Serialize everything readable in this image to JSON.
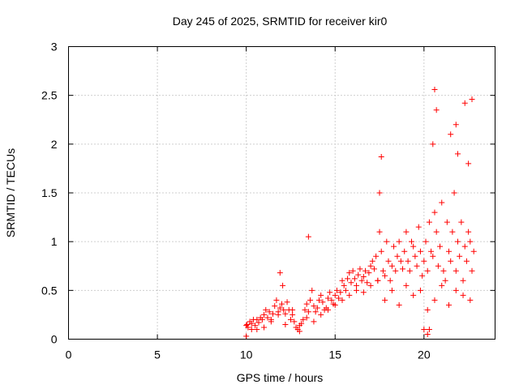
{
  "chart_data": {
    "type": "scatter",
    "title": "Day 245 of 2025, SRMTID for receiver kir0",
    "xlabel": "GPS time / hours",
    "ylabel": "SRMTID / TECUs",
    "xlim": [
      0,
      24
    ],
    "ylim": [
      0,
      3
    ],
    "xticks": [
      0,
      5,
      10,
      15,
      20
    ],
    "xtick_labels": [
      "0",
      "5",
      "10",
      "15",
      "20"
    ],
    "yticks": [
      0,
      0.5,
      1,
      1.5,
      2,
      2.5,
      3
    ],
    "ytick_labels": [
      "0",
      "0.5",
      "1",
      "1.5",
      "2",
      "2.5",
      "3"
    ],
    "grid": true,
    "marker": "+",
    "color": "#ff0000",
    "series": [
      {
        "name": "SRMTID",
        "x": [
          10.0,
          10.05,
          10.1,
          10.2,
          10.3,
          10.4,
          10.5,
          10.6,
          10.7,
          10.8,
          10.9,
          11.0,
          11.1,
          11.2,
          11.3,
          11.4,
          11.5,
          11.6,
          11.7,
          11.8,
          11.9,
          12.0,
          12.05,
          12.1,
          12.2,
          12.3,
          12.4,
          12.5,
          12.6,
          12.7,
          12.8,
          12.9,
          13.0,
          13.1,
          13.2,
          13.3,
          13.4,
          13.5,
          13.6,
          13.7,
          13.8,
          13.9,
          14.0,
          14.1,
          14.2,
          14.3,
          14.4,
          14.5,
          14.6,
          14.7,
          14.8,
          14.9,
          15.0,
          15.1,
          15.2,
          15.3,
          15.4,
          15.5,
          15.6,
          15.7,
          15.8,
          15.9,
          16.0,
          16.1,
          16.2,
          16.3,
          16.4,
          16.5,
          16.6,
          16.7,
          16.8,
          16.9,
          17.0,
          17.1,
          17.2,
          17.3,
          17.4,
          17.5,
          17.6,
          17.7,
          17.8,
          17.9,
          18.0,
          18.1,
          18.2,
          18.3,
          18.4,
          18.5,
          18.6,
          18.7,
          18.8,
          18.9,
          19.0,
          19.1,
          19.2,
          19.3,
          19.4,
          19.5,
          19.6,
          19.7,
          19.8,
          19.9,
          20.0,
          20.1,
          20.2,
          20.3,
          20.4,
          20.5,
          20.6,
          20.7,
          20.8,
          20.9,
          21.0,
          21.1,
          21.2,
          21.3,
          21.4,
          21.5,
          21.6,
          21.7,
          21.8,
          21.9,
          22.0,
          22.1,
          22.2,
          22.3,
          22.4,
          22.5,
          22.6,
          22.7,
          22.8,
          10.0,
          10.3,
          10.6,
          11.0,
          11.4,
          11.8,
          12.2,
          12.6,
          13.0,
          13.4,
          13.8,
          14.2,
          14.6,
          15.0,
          15.4,
          15.8,
          16.2,
          16.6,
          17.0,
          17.4,
          17.8,
          18.2,
          18.6,
          19.0,
          19.4,
          19.8,
          20.2,
          20.6,
          21.0,
          21.4,
          21.8,
          22.2,
          22.6,
          17.6,
          20.6,
          20.7,
          21.5,
          22.3,
          22.7,
          21.8,
          21.9,
          22.5,
          20.5,
          17.5,
          13.5,
          11.9,
          20.0,
          20.2,
          20.3
        ],
        "y": [
          0.03,
          0.15,
          0.12,
          0.18,
          0.16,
          0.2,
          0.14,
          0.1,
          0.17,
          0.22,
          0.2,
          0.25,
          0.3,
          0.22,
          0.28,
          0.2,
          0.26,
          0.34,
          0.4,
          0.28,
          0.32,
          0.36,
          0.55,
          0.3,
          0.26,
          0.38,
          0.3,
          0.2,
          0.25,
          0.18,
          0.12,
          0.1,
          0.14,
          0.16,
          0.2,
          0.3,
          0.36,
          0.28,
          0.4,
          0.5,
          0.34,
          0.28,
          0.32,
          0.4,
          0.45,
          0.38,
          0.3,
          0.32,
          0.42,
          0.48,
          0.4,
          0.36,
          0.45,
          0.5,
          0.42,
          0.48,
          0.6,
          0.55,
          0.5,
          0.62,
          0.68,
          0.58,
          0.7,
          0.62,
          0.55,
          0.66,
          0.72,
          0.6,
          0.64,
          0.7,
          0.58,
          0.68,
          0.75,
          0.8,
          0.72,
          0.85,
          0.6,
          1.1,
          0.9,
          0.7,
          0.65,
          1.0,
          0.8,
          0.6,
          0.75,
          0.95,
          0.7,
          0.85,
          1.0,
          0.8,
          0.72,
          0.9,
          1.1,
          0.8,
          0.7,
          1.0,
          0.95,
          0.85,
          0.75,
          1.15,
          0.9,
          0.65,
          0.8,
          1.0,
          0.7,
          1.2,
          0.9,
          0.85,
          1.3,
          1.1,
          0.75,
          0.95,
          1.4,
          0.7,
          0.6,
          1.2,
          0.9,
          0.8,
          1.1,
          1.5,
          0.7,
          1.0,
          0.85,
          1.2,
          0.6,
          0.95,
          0.8,
          1.1,
          1.0,
          0.7,
          0.9,
          0.14,
          0.1,
          0.2,
          0.12,
          0.18,
          0.25,
          0.15,
          0.3,
          0.08,
          0.22,
          0.18,
          0.25,
          0.3,
          0.35,
          0.4,
          0.45,
          0.5,
          0.48,
          0.55,
          0.6,
          0.4,
          0.5,
          0.35,
          0.55,
          0.45,
          0.5,
          0.3,
          0.4,
          0.55,
          0.35,
          0.5,
          0.45,
          0.4,
          1.87,
          2.56,
          2.35,
          2.1,
          2.42,
          2.46,
          2.2,
          1.9,
          1.8,
          2.0,
          1.5,
          1.05,
          0.68,
          0.1,
          0.05,
          0.1
        ]
      }
    ]
  }
}
